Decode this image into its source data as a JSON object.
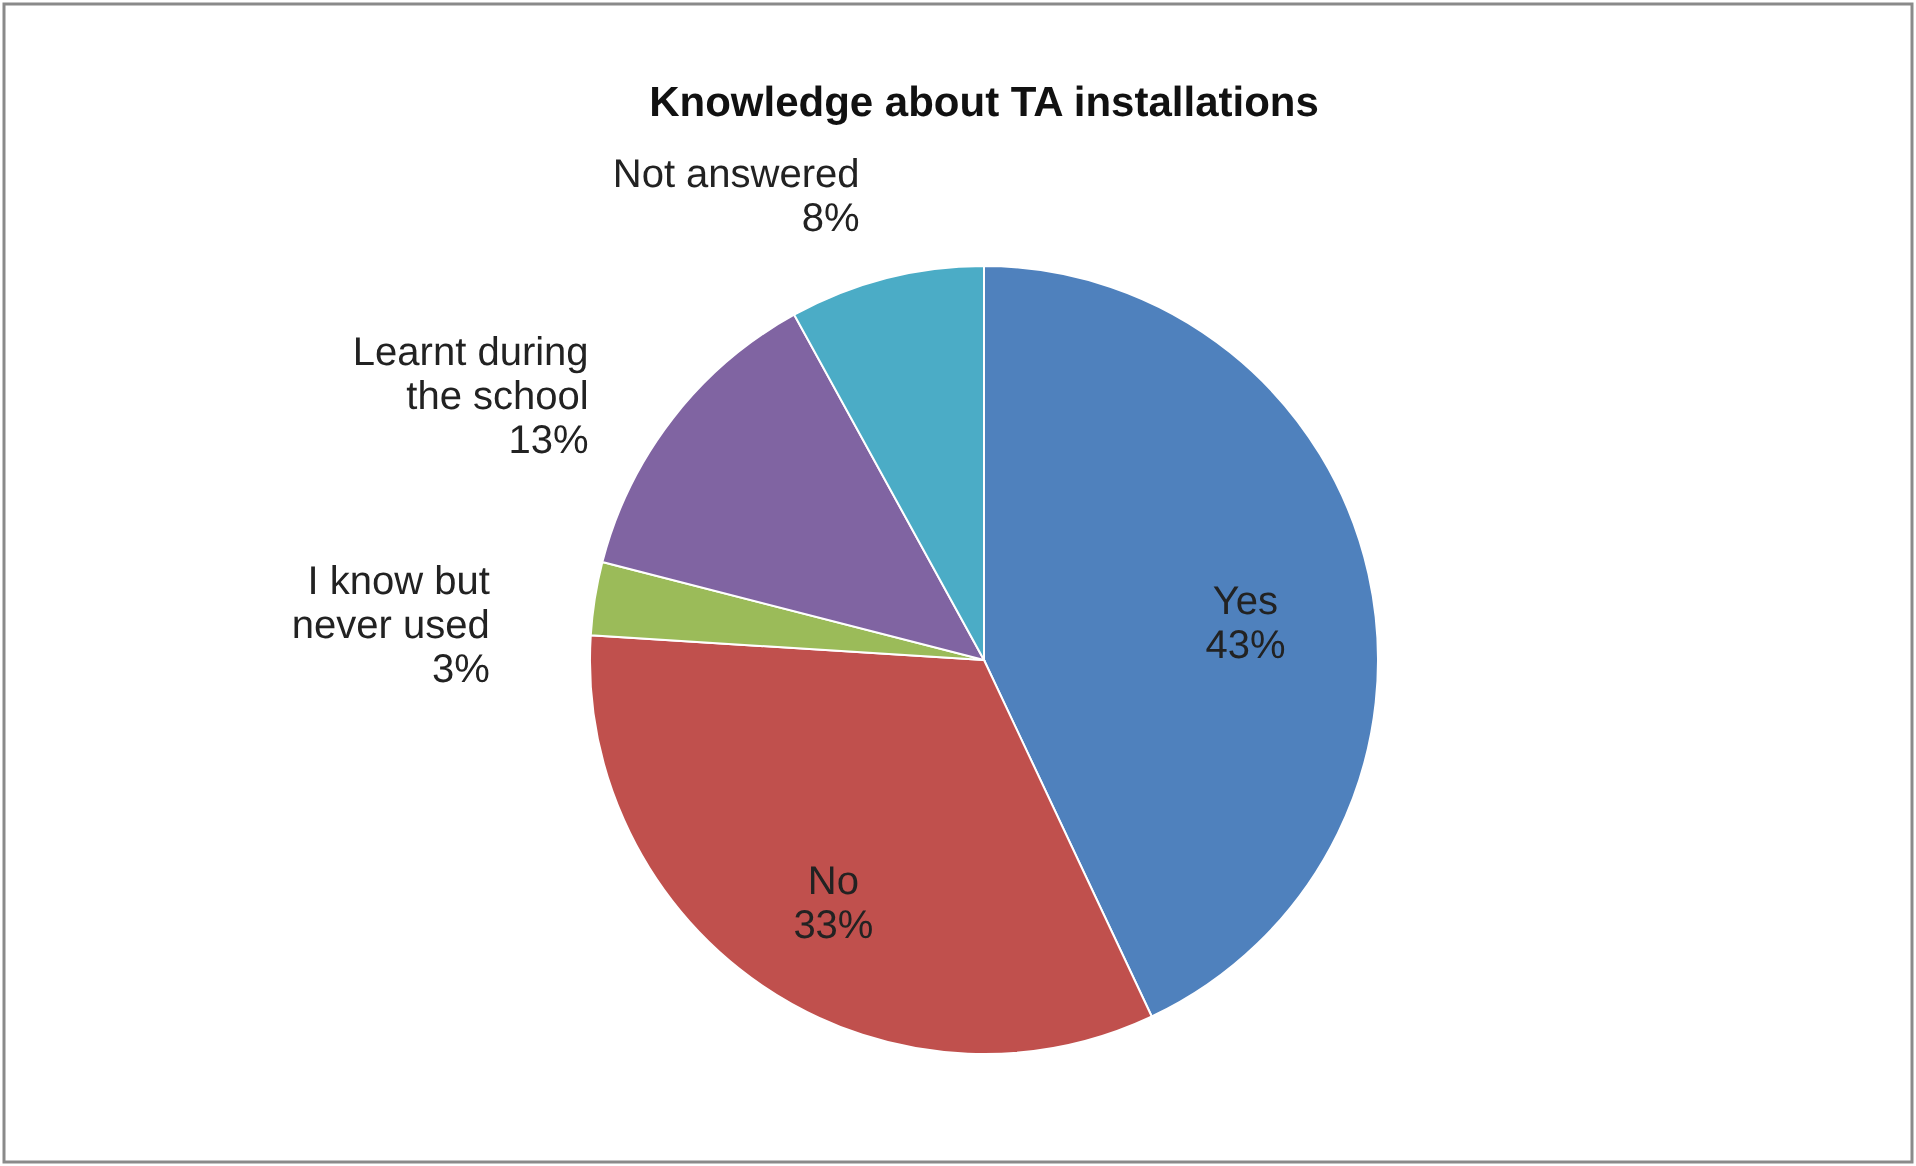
{
  "chart_data": {
    "type": "pie",
    "title": "Knowledge about TA installations",
    "categories": [
      "Yes",
      "No",
      "I  know but\nnever used",
      "Learnt during\nthe school",
      "Not answered"
    ],
    "values": [
      43,
      33,
      3,
      13,
      8
    ],
    "colors": [
      "#4f81bd",
      "#c0504d",
      "#9bbb59",
      "#8064a2",
      "#4bacc6"
    ],
    "value_labels": [
      "43%",
      "33%",
      "3%",
      "13%",
      "8%"
    ]
  }
}
